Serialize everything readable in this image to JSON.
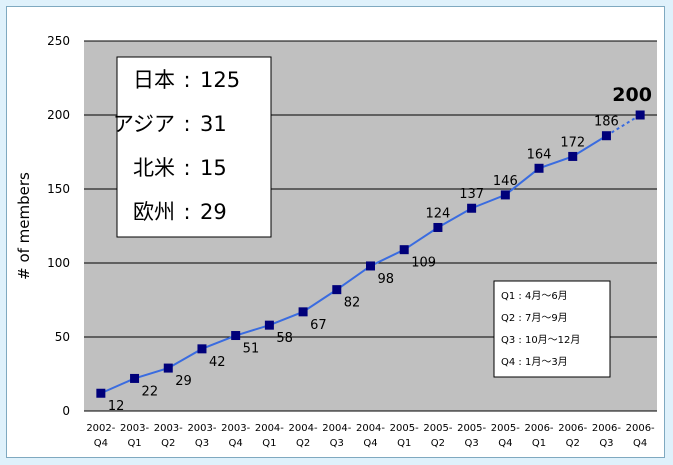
{
  "chart_data": {
    "type": "line",
    "ylabel": "# of members",
    "ylim": [
      0,
      250
    ],
    "yticks": [
      "0",
      "50",
      "100",
      "150",
      "200",
      "250"
    ],
    "grid": "horizontal",
    "categories": [
      [
        "2002-",
        "Q4"
      ],
      [
        "2003-",
        "Q1"
      ],
      [
        "2003-",
        "Q2"
      ],
      [
        "2003-",
        "Q3"
      ],
      [
        "2003-",
        "Q4"
      ],
      [
        "2004-",
        "Q1"
      ],
      [
        "2004-",
        "Q2"
      ],
      [
        "2004-",
        "Q3"
      ],
      [
        "2004-",
        "Q4"
      ],
      [
        "2005-",
        "Q1"
      ],
      [
        "2005-",
        "Q2"
      ],
      [
        "2005-",
        "Q3"
      ],
      [
        "2005-",
        "Q4"
      ],
      [
        "2006-",
        "Q1"
      ],
      [
        "2006-",
        "Q2"
      ],
      [
        "2006-",
        "Q3"
      ],
      [
        "2006-",
        "Q4"
      ]
    ],
    "values": [
      12,
      22,
      29,
      42,
      51,
      58,
      67,
      82,
      98,
      109,
      124,
      137,
      146,
      164,
      172,
      186,
      200
    ],
    "data_labels": [
      "12",
      "22",
      "29",
      "42",
      "51",
      "58",
      "67",
      "82",
      "98",
      "109",
      "124",
      "137",
      "146",
      "164",
      "172",
      "186",
      "200"
    ],
    "last_segment_style": "dashed",
    "colors": {
      "line": "#3a6ce0",
      "marker": "#00007a",
      "plot_bg": "#c0c0c0",
      "grid": "#000000",
      "page_bg": "#dff1fb"
    }
  },
  "regions": [
    {
      "name": "日本",
      "sep": ":",
      "value": "125"
    },
    {
      "name": "アジア",
      "sep": ":",
      "value": "31"
    },
    {
      "name": "北米",
      "sep": ":",
      "value": "15"
    },
    {
      "name": "欧州",
      "sep": ":",
      "value": "29"
    }
  ],
  "quarter_legend": [
    "Q1 : 4月～6月",
    "Q2 : 7月～9月",
    "Q3 : 10月～12月",
    "Q4 : 1月～3月"
  ]
}
